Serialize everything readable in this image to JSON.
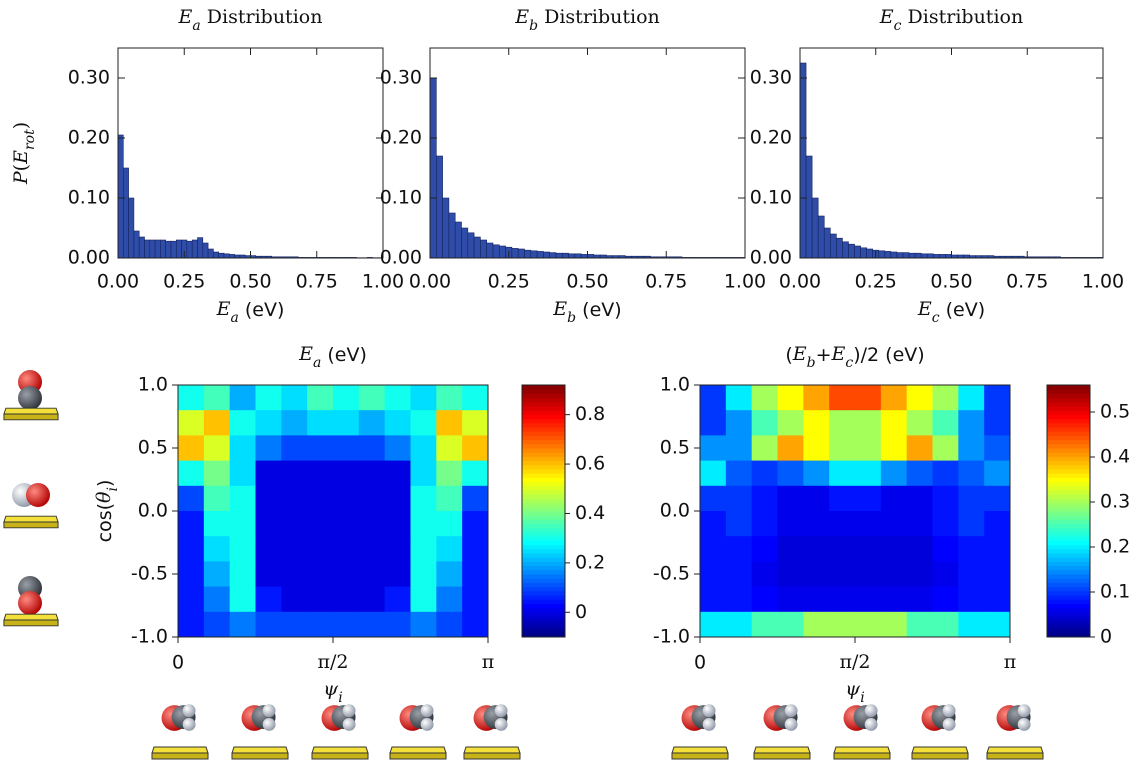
{
  "chart_data": [
    {
      "type": "histogram",
      "title": [
        {
          "i": "E"
        },
        {
          "s": "a"
        },
        {
          "t": " Distribution"
        }
      ],
      "xlabel": [
        {
          "i": "E"
        },
        {
          "s": "a"
        },
        {
          "t": " (eV)"
        }
      ],
      "ylabel": [
        {
          "i": "P"
        },
        {
          "t": "("
        },
        {
          "i": "E"
        },
        {
          "s": "rot"
        },
        {
          "t": ")"
        }
      ],
      "color": "#2f4da8",
      "bins": [
        0,
        0.02,
        0.04,
        0.06,
        0.08,
        0.1,
        0.12,
        0.14,
        0.16,
        0.18,
        0.2,
        0.22,
        0.24,
        0.26,
        0.28,
        0.3,
        0.32,
        0.34,
        0.36,
        0.38,
        0.4,
        0.42,
        0.44,
        0.46,
        0.48,
        0.5,
        0.52,
        0.54,
        0.56,
        0.58,
        0.6,
        0.62,
        0.64,
        0.66,
        0.68,
        0.7,
        0.72,
        0.74,
        0.76,
        0.78,
        0.8,
        0.82,
        0.84,
        0.86,
        0.88,
        0.9,
        0.92,
        0.94,
        0.96,
        0.98,
        1.0
      ],
      "values": [
        0.205,
        0.15,
        0.1,
        0.045,
        0.035,
        0.03,
        0.03,
        0.03,
        0.03,
        0.028,
        0.028,
        0.03,
        0.03,
        0.028,
        0.03,
        0.034,
        0.025,
        0.015,
        0.01,
        0.008,
        0.007,
        0.006,
        0.005,
        0.005,
        0.004,
        0.004,
        0.003,
        0.003,
        0.003,
        0.002,
        0.002,
        0.002,
        0.002,
        0.002,
        0.001,
        0.001,
        0.001,
        0.001,
        0.001,
        0.001,
        0.001,
        0.001,
        0.001,
        0.001,
        0.001,
        0.0005,
        0.0005,
        0.001,
        0.0005,
        0.0005
      ],
      "xlim": [
        0,
        1
      ],
      "ylim": [
        0,
        0.35
      ],
      "xticks": [
        {
          "value": 0,
          "label": "0.00"
        },
        {
          "value": 0.25,
          "label": "0.25"
        },
        {
          "value": 0.5,
          "label": "0.50"
        },
        {
          "value": 0.75,
          "label": "0.75"
        },
        {
          "value": 1,
          "label": "1.00"
        }
      ],
      "yticks": [
        {
          "value": 0,
          "label": "0.00"
        },
        {
          "value": 0.1,
          "label": "0.10"
        },
        {
          "value": 0.2,
          "label": "0.20"
        },
        {
          "value": 0.3,
          "label": "0.30"
        }
      ]
    },
    {
      "type": "histogram",
      "title": [
        {
          "i": "E"
        },
        {
          "s": "b"
        },
        {
          "t": " Distribution"
        }
      ],
      "xlabel": [
        {
          "i": "E"
        },
        {
          "s": "b"
        },
        {
          "t": " (eV)"
        }
      ],
      "color": "#2f4da8",
      "bins": [
        0,
        0.02,
        0.04,
        0.06,
        0.08,
        0.1,
        0.12,
        0.14,
        0.16,
        0.18,
        0.2,
        0.22,
        0.24,
        0.26,
        0.28,
        0.3,
        0.32,
        0.34,
        0.36,
        0.38,
        0.4,
        0.42,
        0.44,
        0.46,
        0.48,
        0.5,
        0.52,
        0.54,
        0.56,
        0.58,
        0.6,
        0.62,
        0.64,
        0.66,
        0.68,
        0.7,
        0.72,
        0.74,
        0.76,
        0.78,
        0.8,
        0.82,
        0.84,
        0.86,
        0.88,
        0.9,
        0.92,
        0.94,
        0.96,
        0.98,
        1.0
      ],
      "values": [
        0.3,
        0.17,
        0.1,
        0.075,
        0.06,
        0.05,
        0.042,
        0.035,
        0.03,
        0.025,
        0.022,
        0.02,
        0.018,
        0.016,
        0.015,
        0.013,
        0.012,
        0.011,
        0.01,
        0.009,
        0.008,
        0.008,
        0.007,
        0.007,
        0.006,
        0.006,
        0.005,
        0.005,
        0.004,
        0.004,
        0.004,
        0.003,
        0.003,
        0.003,
        0.003,
        0.002,
        0.002,
        0.002,
        0.002,
        0.002,
        0.001,
        0.001,
        0.001,
        0.001,
        0.001,
        0.001,
        0.001,
        0.001,
        0.001,
        0.001
      ],
      "xlim": [
        0,
        1
      ],
      "ylim": [
        0,
        0.35
      ],
      "xticks": [
        {
          "value": 0,
          "label": "0.00"
        },
        {
          "value": 0.25,
          "label": "0.25"
        },
        {
          "value": 0.5,
          "label": "0.50"
        },
        {
          "value": 0.75,
          "label": "0.75"
        },
        {
          "value": 1,
          "label": "1.00"
        }
      ],
      "yticks": [
        {
          "value": 0,
          "label": "0.00"
        },
        {
          "value": 0.1,
          "label": "0.10"
        },
        {
          "value": 0.2,
          "label": "0.20"
        },
        {
          "value": 0.3,
          "label": "0.30"
        }
      ]
    },
    {
      "type": "histogram",
      "title": [
        {
          "i": "E"
        },
        {
          "s": "c"
        },
        {
          "t": " Distribution"
        }
      ],
      "xlabel": [
        {
          "i": "E"
        },
        {
          "s": "c"
        },
        {
          "t": " (eV)"
        }
      ],
      "color": "#2f4da8",
      "bins": [
        0,
        0.02,
        0.04,
        0.06,
        0.08,
        0.1,
        0.12,
        0.14,
        0.16,
        0.18,
        0.2,
        0.22,
        0.24,
        0.26,
        0.28,
        0.3,
        0.32,
        0.34,
        0.36,
        0.38,
        0.4,
        0.42,
        0.44,
        0.46,
        0.48,
        0.5,
        0.52,
        0.54,
        0.56,
        0.58,
        0.6,
        0.62,
        0.64,
        0.66,
        0.68,
        0.7,
        0.72,
        0.74,
        0.76,
        0.78,
        0.8,
        0.82,
        0.84,
        0.86,
        0.88,
        0.9,
        0.92,
        0.94,
        0.96,
        0.98,
        1.0
      ],
      "values": [
        0.325,
        0.17,
        0.1,
        0.07,
        0.05,
        0.04,
        0.033,
        0.027,
        0.023,
        0.02,
        0.017,
        0.015,
        0.013,
        0.012,
        0.011,
        0.01,
        0.009,
        0.009,
        0.008,
        0.008,
        0.007,
        0.007,
        0.006,
        0.006,
        0.006,
        0.005,
        0.005,
        0.005,
        0.004,
        0.004,
        0.004,
        0.004,
        0.003,
        0.003,
        0.003,
        0.003,
        0.003,
        0.002,
        0.002,
        0.002,
        0.002,
        0.002,
        0.002,
        0.001,
        0.001,
        0.001,
        0.001,
        0.001,
        0.001,
        0.001
      ],
      "xlim": [
        0,
        1
      ],
      "ylim": [
        0,
        0.35
      ],
      "xticks": [
        {
          "value": 0,
          "label": "0.00"
        },
        {
          "value": 0.25,
          "label": "0.25"
        },
        {
          "value": 0.5,
          "label": "0.50"
        },
        {
          "value": 0.75,
          "label": "0.75"
        },
        {
          "value": 1,
          "label": "1.00"
        }
      ],
      "yticks": [
        {
          "value": 0,
          "label": "0.00"
        },
        {
          "value": 0.1,
          "label": "0.10"
        },
        {
          "value": 0.2,
          "label": "0.20"
        },
        {
          "value": 0.3,
          "label": "0.30"
        }
      ]
    },
    {
      "type": "heatmap",
      "title": [
        {
          "i": "E"
        },
        {
          "s": "a"
        },
        {
          "t": " (eV)"
        }
      ],
      "xlabel": [
        {
          "i": "ψ"
        },
        {
          "s": "i"
        }
      ],
      "ylabel": [
        {
          "t": "cos("
        },
        {
          "i": "θ"
        },
        {
          "s": "i"
        },
        {
          "t": ")"
        }
      ],
      "colormap": "jet",
      "xlim": [
        0,
        3.1416
      ],
      "ylim": [
        -1,
        1
      ],
      "xticks": [
        0,
        {
          "value": 1.5708,
          "label": "π/2"
        },
        {
          "value": 3.1416,
          "label": "π"
        }
      ],
      "yticks": [
        {
          "value": 1,
          "label": "1.0"
        },
        {
          "value": 0.5,
          "label": "0.5"
        },
        {
          "value": 0,
          "label": "0.0"
        },
        {
          "value": -0.5,
          "label": "-0.5"
        },
        {
          "value": -1,
          "label": "-1.0"
        }
      ],
      "zlim": [
        -0.1,
        0.92
      ],
      "zticks": [
        0,
        0.2,
        0.4,
        0.6,
        0.8
      ],
      "z": [
        [
          0.3,
          0.35,
          0.2,
          0.3,
          0.25,
          0.35,
          0.3,
          0.35,
          0.3,
          0.25,
          0.35,
          0.3
        ],
        [
          0.5,
          0.6,
          0.3,
          0.25,
          0.2,
          0.25,
          0.25,
          0.2,
          0.25,
          0.3,
          0.6,
          0.5
        ],
        [
          0.6,
          0.5,
          0.25,
          0.15,
          0.1,
          0.1,
          0.1,
          0.1,
          0.15,
          0.25,
          0.5,
          0.6
        ],
        [
          0.3,
          0.4,
          0.25,
          0.0,
          0.0,
          0.0,
          0.0,
          0.0,
          0.0,
          0.25,
          0.4,
          0.3
        ],
        [
          0.1,
          0.35,
          0.3,
          0.0,
          0.0,
          0.0,
          0.0,
          0.0,
          0.0,
          0.3,
          0.35,
          0.1
        ],
        [
          0.05,
          0.3,
          0.3,
          0.0,
          0.0,
          0.0,
          0.0,
          0.0,
          0.0,
          0.3,
          0.3,
          0.05
        ],
        [
          0.05,
          0.25,
          0.3,
          0.0,
          0.0,
          0.0,
          0.0,
          0.0,
          0.0,
          0.3,
          0.25,
          0.05
        ],
        [
          0.05,
          0.2,
          0.3,
          0.0,
          0.0,
          0.0,
          0.0,
          0.0,
          0.0,
          0.3,
          0.2,
          0.05
        ],
        [
          0.05,
          0.15,
          0.3,
          0.05,
          0.0,
          0.0,
          0.0,
          0.0,
          0.05,
          0.3,
          0.15,
          0.05
        ],
        [
          0.05,
          0.1,
          0.15,
          0.1,
          0.1,
          0.1,
          0.1,
          0.1,
          0.1,
          0.15,
          0.1,
          0.05
        ]
      ]
    },
    {
      "type": "heatmap",
      "title": [
        {
          "t": "("
        },
        {
          "i": "E"
        },
        {
          "s": "b"
        },
        {
          "t": "+"
        },
        {
          "i": "E"
        },
        {
          "s": "c"
        },
        {
          "t": ")/2 (eV)"
        }
      ],
      "xlabel": [
        {
          "i": "ψ"
        },
        {
          "s": "i"
        }
      ],
      "colormap": "jet",
      "xlim": [
        0,
        3.1416
      ],
      "ylim": [
        -1,
        1
      ],
      "xticks": [
        0,
        {
          "value": 1.5708,
          "label": "π/2"
        },
        {
          "value": 3.1416,
          "label": "π"
        }
      ],
      "yticks": [
        {
          "value": 1,
          "label": "1.0"
        },
        {
          "value": 0.5,
          "label": "0.5"
        },
        {
          "value": 0,
          "label": "0.0"
        },
        {
          "value": -0.5,
          "label": "-0.5"
        },
        {
          "value": -1,
          "label": "-1.0"
        }
      ],
      "zlim": [
        0,
        0.56
      ],
      "zticks": [
        0,
        0.1,
        0.2,
        0.3,
        0.4,
        0.5
      ],
      "z": [
        [
          0.1,
          0.2,
          0.3,
          0.35,
          0.4,
          0.45,
          0.45,
          0.4,
          0.35,
          0.3,
          0.2,
          0.1
        ],
        [
          0.1,
          0.15,
          0.25,
          0.3,
          0.35,
          0.3,
          0.3,
          0.35,
          0.3,
          0.25,
          0.15,
          0.1
        ],
        [
          0.15,
          0.15,
          0.3,
          0.4,
          0.35,
          0.3,
          0.3,
          0.35,
          0.4,
          0.3,
          0.15,
          0.12
        ],
        [
          0.2,
          0.12,
          0.1,
          0.12,
          0.15,
          0.2,
          0.2,
          0.15,
          0.12,
          0.1,
          0.12,
          0.15
        ],
        [
          0.1,
          0.1,
          0.08,
          0.06,
          0.06,
          0.08,
          0.08,
          0.06,
          0.06,
          0.08,
          0.1,
          0.1
        ],
        [
          0.08,
          0.1,
          0.08,
          0.06,
          0.06,
          0.06,
          0.06,
          0.06,
          0.06,
          0.08,
          0.1,
          0.08
        ],
        [
          0.08,
          0.08,
          0.07,
          0.05,
          0.05,
          0.05,
          0.05,
          0.05,
          0.05,
          0.07,
          0.08,
          0.08
        ],
        [
          0.08,
          0.08,
          0.06,
          0.05,
          0.05,
          0.05,
          0.05,
          0.05,
          0.05,
          0.06,
          0.08,
          0.08
        ],
        [
          0.08,
          0.08,
          0.07,
          0.06,
          0.06,
          0.06,
          0.06,
          0.06,
          0.06,
          0.07,
          0.08,
          0.08
        ],
        [
          0.2,
          0.2,
          0.25,
          0.25,
          0.3,
          0.3,
          0.3,
          0.3,
          0.25,
          0.25,
          0.2,
          0.2
        ]
      ]
    }
  ]
}
